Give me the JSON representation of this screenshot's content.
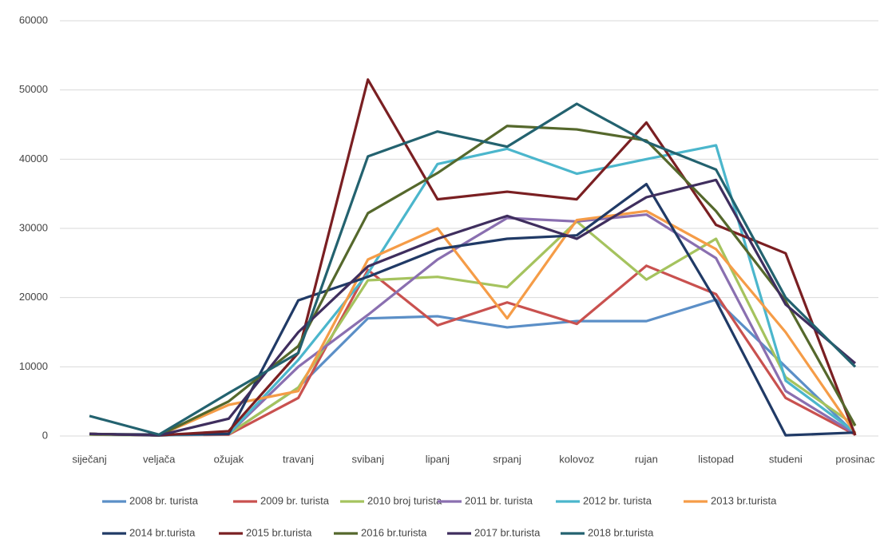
{
  "chart_data": {
    "type": "line",
    "categories": [
      "siječanj",
      "veljača",
      "ožujak",
      "travanj",
      "svibanj",
      "lipanj",
      "srpanj",
      "kolovoz",
      "rujan",
      "listopad",
      "studeni",
      "prosinac"
    ],
    "ylim": [
      0,
      60000
    ],
    "yticks": [
      0,
      10000,
      20000,
      30000,
      40000,
      50000,
      60000
    ],
    "grid": true,
    "series": [
      {
        "name": "2008 br. turista",
        "color": "#5b8fc7",
        "values": [
          200,
          100,
          300,
          7000,
          17000,
          17300,
          15700,
          16600,
          16600,
          19700,
          10000,
          300
        ]
      },
      {
        "name": "2009 br. turista",
        "color": "#c9514f",
        "values": [
          300,
          100,
          200,
          5500,
          24000,
          16000,
          19300,
          16200,
          24600,
          20500,
          5500,
          200
        ]
      },
      {
        "name": "2010 broj turista",
        "color": "#a5c35e",
        "values": [
          200,
          100,
          300,
          7000,
          22500,
          23000,
          21500,
          31000,
          22600,
          28500,
          8500,
          1500
        ]
      },
      {
        "name": "2011 br. turista",
        "color": "#8a6fb0",
        "values": [
          300,
          100,
          300,
          10000,
          17500,
          25500,
          31500,
          31000,
          32000,
          25700,
          6500,
          300
        ]
      },
      {
        "name": "2012 br. turista",
        "color": "#4bb6cc",
        "values": [
          300,
          100,
          300,
          11000,
          23500,
          39300,
          41500,
          37900,
          40000,
          42000,
          8000,
          500
        ]
      },
      {
        "name": "2013 br.turista",
        "color": "#f59c47",
        "values": [
          300,
          100,
          4500,
          6500,
          25500,
          30000,
          17000,
          31200,
          32500,
          27000,
          15000,
          400
        ]
      },
      {
        "name": "2014 br.turista",
        "color": "#203a66",
        "values": [
          300,
          200,
          300,
          19600,
          23000,
          27000,
          28500,
          29000,
          36400,
          19500,
          100,
          500
        ]
      },
      {
        "name": "2015 br.turista",
        "color": "#7a1f22",
        "values": [
          300,
          100,
          700,
          12000,
          51500,
          34200,
          35300,
          34200,
          45300,
          30500,
          26400,
          100
        ]
      },
      {
        "name": "2016 br.turista",
        "color": "#55682c",
        "values": [
          300,
          100,
          5000,
          13000,
          32200,
          38000,
          44800,
          44300,
          42700,
          32500,
          19500,
          1500
        ]
      },
      {
        "name": "2017 br.turista",
        "color": "#3f2e5e",
        "values": [
          300,
          100,
          2500,
          15000,
          24500,
          28500,
          31800,
          28500,
          34500,
          37000,
          19000,
          10500
        ]
      },
      {
        "name": "2018 br.turista",
        "color": "#23626f",
        "values": [
          2900,
          200,
          6200,
          12000,
          40400,
          44000,
          41800,
          48000,
          42500,
          38500,
          20000,
          10000
        ]
      }
    ]
  }
}
